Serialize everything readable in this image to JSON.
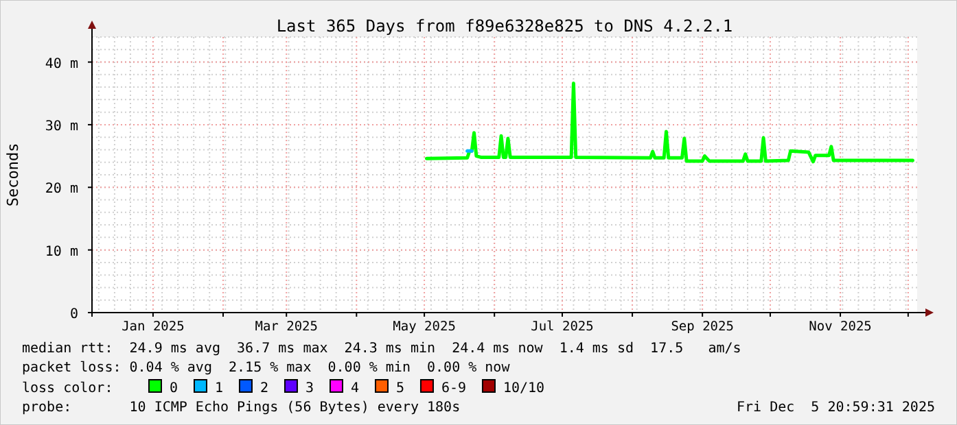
{
  "chart_data": {
    "type": "line",
    "title": "Last 365 Days from f89e6328e825 to DNS 4.2.2.1",
    "ylabel": "Seconds",
    "xlim": [
      "2024-12-05",
      "2025-12-05"
    ],
    "xticks": [
      {
        "value": "2025-01-01",
        "label": "Jan 2025"
      },
      {
        "value": "2025-02-01",
        "label": null
      },
      {
        "value": "2025-03-01",
        "label": "Mar 2025"
      },
      {
        "value": "2025-04-01",
        "label": null
      },
      {
        "value": "2025-05-01",
        "label": "May 2025"
      },
      {
        "value": "2025-06-01",
        "label": null
      },
      {
        "value": "2025-07-01",
        "label": "Jul 2025"
      },
      {
        "value": "2025-08-01",
        "label": null
      },
      {
        "value": "2025-09-01",
        "label": "Sep 2025"
      },
      {
        "value": "2025-10-01",
        "label": null
      },
      {
        "value": "2025-11-01",
        "label": "Nov 2025"
      },
      {
        "value": "2025-12-01",
        "label": null
      }
    ],
    "ylim": [
      0,
      44
    ],
    "yticks": [
      {
        "value": 0,
        "label": "0"
      },
      {
        "value": 10,
        "label": "10 m"
      },
      {
        "value": 20,
        "label": "20 m"
      },
      {
        "value": 30,
        "label": "30 m"
      },
      {
        "value": 40,
        "label": "40 m"
      }
    ],
    "grid": true,
    "legend": "bottom",
    "legend_title": "loss color:",
    "series": [
      {
        "name": "0",
        "color": "#00ff00",
        "x": [
          "2025-05-02",
          "2025-05-20",
          "2025-05-21",
          "2025-05-22",
          "2025-05-23",
          "2025-05-24",
          "2025-05-26",
          "2025-06-03",
          "2025-06-04",
          "2025-06-05",
          "2025-06-06",
          "2025-06-07",
          "2025-06-08",
          "2025-07-05",
          "2025-07-06",
          "2025-07-07",
          "2025-08-09",
          "2025-08-10",
          "2025-08-11",
          "2025-08-15",
          "2025-08-16",
          "2025-08-17",
          "2025-08-23",
          "2025-08-24",
          "2025-08-25",
          "2025-09-01",
          "2025-09-02",
          "2025-09-04",
          "2025-09-19",
          "2025-09-20",
          "2025-09-21",
          "2025-09-27",
          "2025-09-28",
          "2025-09-29",
          "2025-10-09",
          "2025-10-10",
          "2025-10-18",
          "2025-10-20",
          "2025-10-21",
          "2025-10-27",
          "2025-10-28",
          "2025-10-29",
          "2025-12-03"
        ],
        "values": [
          24.6,
          24.7,
          25.8,
          25.8,
          28.7,
          25.0,
          24.8,
          24.8,
          28.2,
          24.8,
          24.8,
          27.8,
          24.8,
          24.8,
          36.6,
          24.8,
          24.7,
          25.7,
          24.7,
          24.7,
          28.9,
          24.7,
          24.7,
          27.8,
          24.2,
          24.2,
          25.0,
          24.2,
          24.2,
          25.3,
          24.2,
          24.2,
          27.9,
          24.2,
          24.3,
          25.8,
          25.6,
          24.1,
          25.1,
          25.1,
          26.5,
          24.3,
          24.3
        ]
      },
      {
        "name": "1",
        "color": "#00b8ff",
        "x": [
          "2025-05-20",
          "2025-05-22"
        ],
        "values": [
          25.8,
          25.8
        ]
      },
      {
        "name": "2",
        "color": "#0059ff"
      },
      {
        "name": "3",
        "color": "#5e00ff"
      },
      {
        "name": "4",
        "color": "#ff00ff"
      },
      {
        "name": "5",
        "color": "#ff5e00"
      },
      {
        "name": "6-9",
        "color": "#ff0000"
      },
      {
        "name": "10/10",
        "color": "#a10000"
      }
    ],
    "annotations": [
      "median rtt:  24.9 ms avg  36.7 ms max  24.3 ms min  24.4 ms now  1.4 ms sd  17.5   am/s",
      "packet loss: 0.04 % avg  2.15 % max  0.00 % min  0.00 % now",
      "probe:       10 ICMP Echo Pings (56 Bytes) every 180s",
      "Fri Dec  5 20:59:31 2025"
    ]
  }
}
